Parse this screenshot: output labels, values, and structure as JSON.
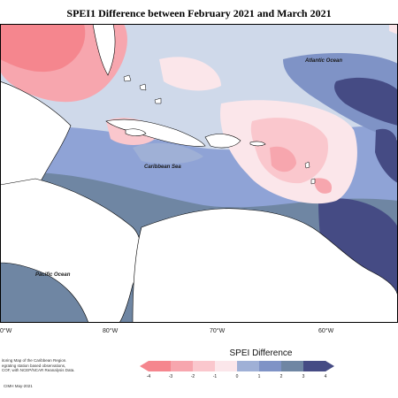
{
  "title": "SPEI1 Difference between February 2021 and March 2021",
  "labels": {
    "atlantic": "Atlantic Ocean",
    "caribbean": "Caribbean Sea",
    "pacific": "Pacific Ocean"
  },
  "longitudes": [
    "0°W",
    "80°W",
    "70°W",
    "60°W"
  ],
  "legend": {
    "title": "SPEI Difference",
    "ticks": [
      "-4",
      "-3",
      "-2",
      "-1",
      "0",
      "1",
      "2",
      "3",
      "4"
    ],
    "colors": [
      "#f5868e",
      "#f7a6ae",
      "#fac7cd",
      "#fbe6ea",
      "#d8e6ef",
      "#9fb0d6",
      "#7f93c6",
      "#6f86a3",
      "#454b84"
    ]
  },
  "footer_lines": [
    "itoring Map of the Caribbean Region.",
    "egrating station based observations,",
    "COF, with NCEP/NCAR Reanalysis Data."
  ],
  "credit": "CIMH May-2021"
}
